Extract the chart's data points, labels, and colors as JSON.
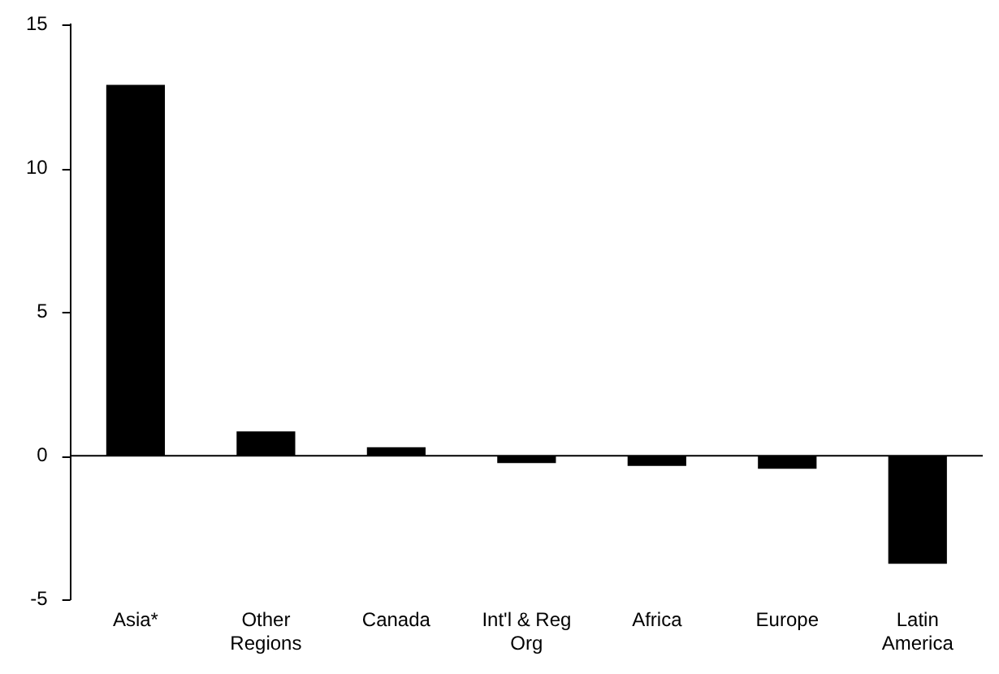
{
  "chart_data": {
    "type": "bar",
    "categories": [
      "Asia*",
      "Other Regions",
      "Canada",
      "Int'l & Reg Org",
      "Africa",
      "Europe",
      "Latin America"
    ],
    "values": [
      12.9,
      0.85,
      0.3,
      -0.25,
      -0.35,
      -0.45,
      -3.75
    ],
    "color": "#000000",
    "ylim": [
      -5,
      15
    ],
    "yticks": [
      -5,
      0,
      5,
      10,
      15
    ],
    "legend": false
  }
}
